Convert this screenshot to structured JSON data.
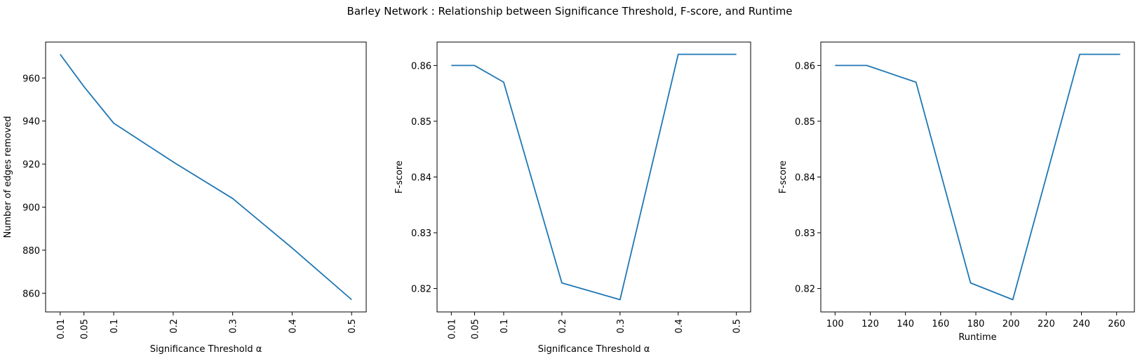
{
  "suptitle": "Barley Network : Relationship between Significance Threshold, F-score, and Runtime",
  "colors": {
    "line": "#1f77b4",
    "axes": "#000000",
    "background": "#ffffff"
  },
  "chart_data": [
    {
      "type": "line",
      "xlabel": "Significance Threshold α",
      "ylabel": "Number of edges removed",
      "x": [
        0.01,
        0.05,
        0.1,
        0.2,
        0.3,
        0.4,
        0.5
      ],
      "xticks": [
        0.01,
        0.05,
        0.1,
        0.2,
        0.3,
        0.4,
        0.5
      ],
      "xtick_labels": [
        "0.01",
        "0.05",
        "0.1",
        "0.2",
        "0.3",
        "0.4",
        "0.5"
      ],
      "xtick_rotation": "vertical",
      "xlim": [
        -0.0145,
        0.5245
      ],
      "series": [
        {
          "values": [
            971,
            956,
            939,
            921,
            904,
            881,
            857
          ]
        }
      ],
      "yticks": [
        860,
        880,
        900,
        920,
        940,
        960
      ],
      "ytick_labels": [
        "860",
        "880",
        "900",
        "920",
        "940",
        "960"
      ],
      "ylim": [
        851.3,
        976.7
      ],
      "grid": false
    },
    {
      "type": "line",
      "xlabel": "Significance Threshold α",
      "ylabel": "F-score",
      "x": [
        0.01,
        0.05,
        0.1,
        0.2,
        0.3,
        0.4,
        0.5
      ],
      "xticks": [
        0.01,
        0.05,
        0.1,
        0.2,
        0.3,
        0.4,
        0.5
      ],
      "xtick_labels": [
        "0.01",
        "0.05",
        "0.1",
        "0.2",
        "0.3",
        "0.4",
        "0.5"
      ],
      "xtick_rotation": "vertical",
      "xlim": [
        -0.0145,
        0.5245
      ],
      "series": [
        {
          "values": [
            0.86,
            0.86,
            0.857,
            0.821,
            0.818,
            0.862,
            0.862
          ]
        }
      ],
      "yticks": [
        0.82,
        0.83,
        0.84,
        0.85,
        0.86
      ],
      "ytick_labels": [
        "0.82",
        "0.83",
        "0.84",
        "0.85",
        "0.86"
      ],
      "ylim": [
        0.8158,
        0.8642
      ],
      "grid": false
    },
    {
      "type": "line",
      "xlabel": "Runtime",
      "ylabel": "F-score",
      "x": [
        100,
        118,
        146,
        177,
        201,
        239,
        262
      ],
      "xticks": [
        100,
        120,
        140,
        160,
        180,
        200,
        220,
        240,
        260
      ],
      "xtick_labels": [
        "100",
        "120",
        "140",
        "160",
        "180",
        "200",
        "220",
        "240",
        "260"
      ],
      "xtick_rotation": "horizontal",
      "xlim": [
        91.9,
        270.1
      ],
      "series": [
        {
          "values": [
            0.86,
            0.86,
            0.857,
            0.821,
            0.818,
            0.862,
            0.862
          ]
        }
      ],
      "yticks": [
        0.82,
        0.83,
        0.84,
        0.85,
        0.86
      ],
      "ytick_labels": [
        "0.82",
        "0.83",
        "0.84",
        "0.85",
        "0.86"
      ],
      "ylim": [
        0.8158,
        0.8642
      ],
      "grid": false
    }
  ]
}
